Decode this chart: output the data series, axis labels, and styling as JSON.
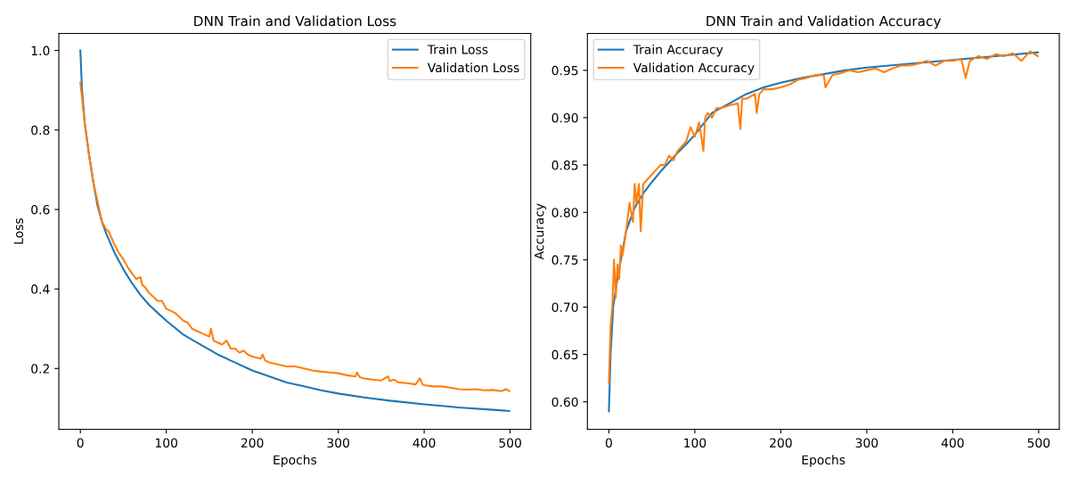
{
  "chart_data": [
    {
      "type": "line",
      "title": "DNN Train and Validation Loss",
      "xlabel": "Epochs",
      "ylabel": "Loss",
      "xlim": [
        -25,
        524
      ],
      "xticks": [
        0,
        100,
        200,
        300,
        400,
        500
      ],
      "ylim": [
        0.047,
        1.043
      ],
      "yticks": [
        {
          "value": 0.2,
          "label": "0.2"
        },
        {
          "value": 0.4,
          "label": "0.4"
        },
        {
          "value": 0.6,
          "label": "0.6"
        },
        {
          "value": 0.8,
          "label": "0.8"
        },
        {
          "value": 1.0,
          "label": "1.0"
        }
      ],
      "grid": false,
      "legend": "top right",
      "series": [
        {
          "name": "Train Loss",
          "color": "#1f77b4",
          "x": [
            0,
            2,
            5,
            10,
            15,
            20,
            25,
            30,
            40,
            50,
            60,
            70,
            80,
            90,
            100,
            120,
            140,
            160,
            180,
            200,
            220,
            240,
            260,
            280,
            300,
            330,
            360,
            400,
            440,
            480,
            499
          ],
          "values": [
            1.0,
            0.9,
            0.82,
            0.74,
            0.67,
            0.61,
            0.57,
            0.54,
            0.49,
            0.45,
            0.415,
            0.385,
            0.36,
            0.34,
            0.32,
            0.285,
            0.26,
            0.235,
            0.215,
            0.195,
            0.18,
            0.165,
            0.155,
            0.145,
            0.137,
            0.127,
            0.119,
            0.11,
            0.102,
            0.096,
            0.093
          ]
        },
        {
          "name": "Validation Loss",
          "color": "#ff7f0e",
          "x": [
            0,
            5,
            10,
            15,
            20,
            25,
            30,
            33,
            36,
            40,
            45,
            50,
            55,
            60,
            65,
            70,
            72,
            75,
            80,
            85,
            90,
            95,
            100,
            105,
            110,
            115,
            120,
            125,
            130,
            135,
            140,
            145,
            150,
            152,
            155,
            160,
            165,
            170,
            175,
            180,
            185,
            190,
            195,
            200,
            210,
            212,
            215,
            220,
            230,
            240,
            250,
            260,
            270,
            280,
            290,
            300,
            310,
            320,
            322,
            325,
            330,
            340,
            350,
            358,
            360,
            365,
            370,
            380,
            390,
            395,
            398,
            400,
            410,
            420,
            430,
            440,
            450,
            460,
            470,
            480,
            490,
            495,
            499
          ],
          "values": [
            0.92,
            0.82,
            0.74,
            0.67,
            0.62,
            0.57,
            0.55,
            0.545,
            0.53,
            0.51,
            0.49,
            0.475,
            0.455,
            0.44,
            0.425,
            0.43,
            0.41,
            0.405,
            0.39,
            0.38,
            0.37,
            0.37,
            0.35,
            0.345,
            0.34,
            0.33,
            0.32,
            0.315,
            0.3,
            0.295,
            0.29,
            0.285,
            0.28,
            0.3,
            0.27,
            0.265,
            0.26,
            0.27,
            0.25,
            0.25,
            0.24,
            0.245,
            0.235,
            0.23,
            0.225,
            0.235,
            0.22,
            0.215,
            0.21,
            0.205,
            0.205,
            0.2,
            0.195,
            0.192,
            0.19,
            0.188,
            0.183,
            0.18,
            0.19,
            0.178,
            0.175,
            0.172,
            0.17,
            0.18,
            0.168,
            0.172,
            0.165,
            0.163,
            0.16,
            0.175,
            0.16,
            0.158,
            0.155,
            0.155,
            0.152,
            0.148,
            0.147,
            0.148,
            0.145,
            0.146,
            0.143,
            0.148,
            0.143
          ]
        }
      ]
    },
    {
      "type": "line",
      "title": "DNN Train and Validation Accuracy",
      "xlabel": "Epochs",
      "ylabel": "Accuracy",
      "xlim": [
        -25,
        524
      ],
      "xticks": [
        0,
        100,
        200,
        300,
        400,
        500
      ],
      "ylim": [
        0.571,
        0.989
      ],
      "yticks": [
        {
          "value": 0.6,
          "label": "0.60"
        },
        {
          "value": 0.65,
          "label": "0.65"
        },
        {
          "value": 0.7,
          "label": "0.70"
        },
        {
          "value": 0.75,
          "label": "0.75"
        },
        {
          "value": 0.8,
          "label": "0.80"
        },
        {
          "value": 0.85,
          "label": "0.85"
        },
        {
          "value": 0.9,
          "label": "0.90"
        },
        {
          "value": 0.95,
          "label": "0.95"
        }
      ],
      "grid": false,
      "legend": "top left",
      "series": [
        {
          "name": "Train Accuracy",
          "color": "#1f77b4",
          "x": [
            0,
            2,
            5,
            10,
            15,
            20,
            30,
            40,
            50,
            60,
            70,
            80,
            90,
            100,
            120,
            140,
            160,
            180,
            200,
            225,
            250,
            275,
            300,
            350,
            400,
            450,
            499
          ],
          "values": [
            0.59,
            0.65,
            0.7,
            0.73,
            0.755,
            0.78,
            0.805,
            0.82,
            0.832,
            0.843,
            0.853,
            0.863,
            0.872,
            0.882,
            0.905,
            0.915,
            0.925,
            0.932,
            0.937,
            0.942,
            0.946,
            0.95,
            0.953,
            0.957,
            0.961,
            0.965,
            0.969
          ]
        },
        {
          "name": "Validation Accuracy",
          "color": "#ff7f0e",
          "x": [
            0,
            2,
            4,
            6,
            8,
            10,
            12,
            14,
            16,
            20,
            24,
            28,
            30,
            32,
            35,
            37,
            40,
            45,
            50,
            55,
            60,
            65,
            70,
            75,
            80,
            85,
            90,
            95,
            100,
            105,
            110,
            112,
            115,
            120,
            125,
            130,
            140,
            150,
            153,
            155,
            160,
            170,
            172,
            175,
            180,
            190,
            200,
            210,
            220,
            230,
            240,
            250,
            252,
            260,
            270,
            280,
            290,
            300,
            310,
            320,
            330,
            340,
            350,
            360,
            370,
            380,
            390,
            400,
            410,
            415,
            420,
            430,
            440,
            450,
            460,
            470,
            480,
            490,
            499
          ],
          "values": [
            0.62,
            0.68,
            0.7,
            0.75,
            0.71,
            0.745,
            0.73,
            0.765,
            0.755,
            0.78,
            0.81,
            0.79,
            0.83,
            0.81,
            0.83,
            0.78,
            0.83,
            0.835,
            0.84,
            0.845,
            0.85,
            0.85,
            0.86,
            0.855,
            0.865,
            0.87,
            0.875,
            0.89,
            0.88,
            0.895,
            0.865,
            0.9,
            0.905,
            0.9,
            0.91,
            0.91,
            0.913,
            0.915,
            0.888,
            0.92,
            0.92,
            0.925,
            0.905,
            0.925,
            0.93,
            0.93,
            0.932,
            0.935,
            0.94,
            0.942,
            0.945,
            0.945,
            0.932,
            0.945,
            0.947,
            0.95,
            0.948,
            0.95,
            0.952,
            0.948,
            0.952,
            0.955,
            0.955,
            0.957,
            0.96,
            0.955,
            0.96,
            0.96,
            0.962,
            0.942,
            0.96,
            0.965,
            0.962,
            0.967,
            0.965,
            0.968,
            0.96,
            0.97,
            0.965
          ]
        }
      ]
    }
  ]
}
